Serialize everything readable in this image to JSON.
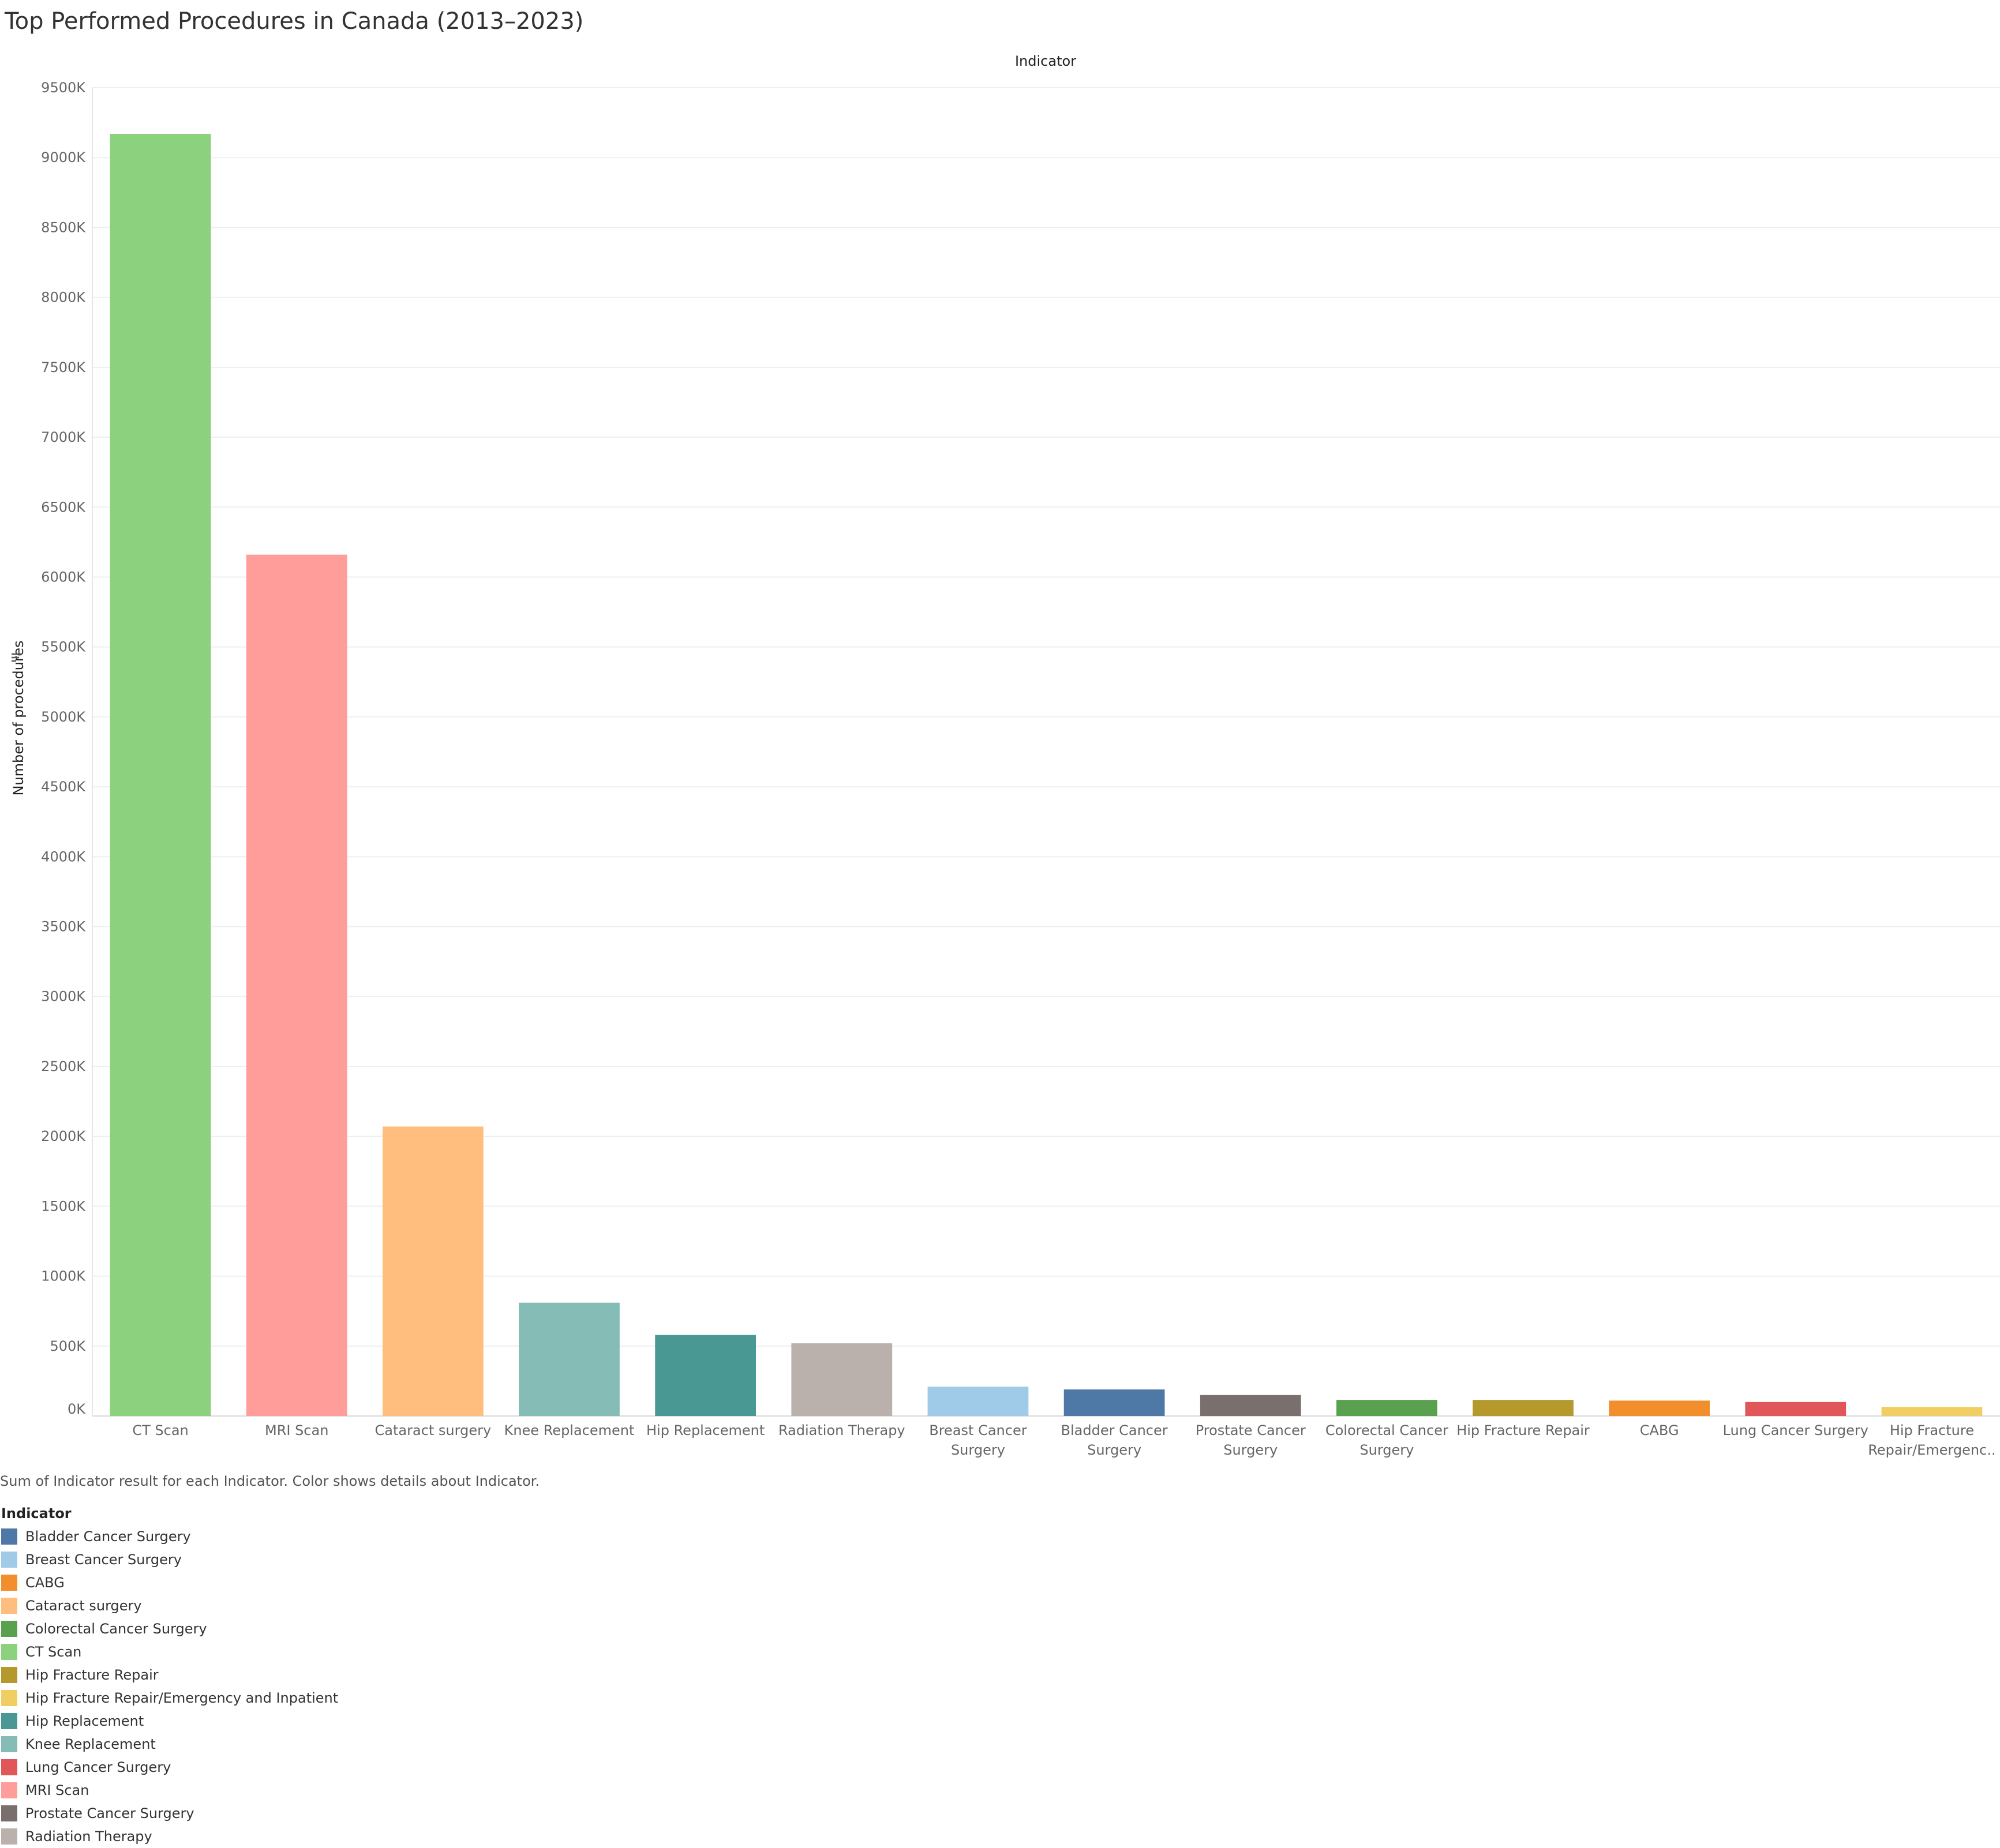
{
  "title": "Top Performed Procedures in Canada (2013–2023)",
  "caption": "Sum of Indicator result for each Indicator.  Color shows details about Indicator.",
  "chart_data": {
    "type": "bar",
    "column_header": "Indicator",
    "ylabel": "Number of procedures",
    "ylim": [
      0,
      9500000
    ],
    "yticks": [
      {
        "value": 0,
        "label": "0K"
      },
      {
        "value": 500000,
        "label": "500K"
      },
      {
        "value": 1000000,
        "label": "1000K"
      },
      {
        "value": 1500000,
        "label": "1500K"
      },
      {
        "value": 2000000,
        "label": "2000K"
      },
      {
        "value": 2500000,
        "label": "2500K"
      },
      {
        "value": 3000000,
        "label": "3000K"
      },
      {
        "value": 3500000,
        "label": "3500K"
      },
      {
        "value": 4000000,
        "label": "4000K"
      },
      {
        "value": 4500000,
        "label": "4500K"
      },
      {
        "value": 5000000,
        "label": "5000K"
      },
      {
        "value": 5500000,
        "label": "5500K"
      },
      {
        "value": 6000000,
        "label": "6000K"
      },
      {
        "value": 6500000,
        "label": "6500K"
      },
      {
        "value": 7000000,
        "label": "7000K"
      },
      {
        "value": 7500000,
        "label": "7500K"
      },
      {
        "value": 8000000,
        "label": "8000K"
      },
      {
        "value": 8500000,
        "label": "8500K"
      },
      {
        "value": 9000000,
        "label": "9000K"
      },
      {
        "value": 9500000,
        "label": "9500K"
      }
    ],
    "grid": true,
    "bars": [
      {
        "category": "CT Scan",
        "label_lines": [
          "CT Scan"
        ],
        "value": 9170000,
        "color": "#8cd17d"
      },
      {
        "category": "MRI Scan",
        "label_lines": [
          "MRI Scan"
        ],
        "value": 6160000,
        "color": "#ff9d9a"
      },
      {
        "category": "Cataract surgery",
        "label_lines": [
          "Cataract surgery"
        ],
        "value": 2070000,
        "color": "#ffbe7d"
      },
      {
        "category": "Knee Replacement",
        "label_lines": [
          "Knee Replacement"
        ],
        "value": 810000,
        "color": "#86bcb6"
      },
      {
        "category": "Hip Replacement",
        "label_lines": [
          "Hip Replacement"
        ],
        "value": 580000,
        "color": "#499894"
      },
      {
        "category": "Radiation Therapy",
        "label_lines": [
          "Radiation Therapy"
        ],
        "value": 520000,
        "color": "#bab0ac"
      },
      {
        "category": "Breast Cancer Surgery",
        "label_lines": [
          "Breast Cancer",
          "Surgery"
        ],
        "value": 210000,
        "color": "#a0cbe8"
      },
      {
        "category": "Bladder Cancer Surgery",
        "label_lines": [
          "Bladder Cancer",
          "Surgery"
        ],
        "value": 190000,
        "color": "#4e79a7"
      },
      {
        "category": "Prostate Cancer Surgery",
        "label_lines": [
          "Prostate Cancer",
          "Surgery"
        ],
        "value": 150000,
        "color": "#79706e"
      },
      {
        "category": "Colorectal Cancer Surgery",
        "label_lines": [
          "Colorectal Cancer",
          "Surgery"
        ],
        "value": 115000,
        "color": "#59a14f"
      },
      {
        "category": "Hip Fracture Repair",
        "label_lines": [
          "Hip Fracture Repair"
        ],
        "value": 115000,
        "color": "#b6992d"
      },
      {
        "category": "CABG",
        "label_lines": [
          "CABG"
        ],
        "value": 110000,
        "color": "#f28e2b"
      },
      {
        "category": "Lung Cancer Surgery",
        "label_lines": [
          "Lung Cancer Surgery"
        ],
        "value": 100000,
        "color": "#e15759"
      },
      {
        "category": "Hip Fracture Repair/Emergency and Inpatient",
        "label_lines": [
          "Hip Fracture",
          "Repair/Emergenc.."
        ],
        "value": 65000,
        "color": "#f1ce63"
      }
    ],
    "legend": {
      "title": "Indicator",
      "placement": "bottom-left",
      "items": [
        {
          "label": "Bladder Cancer Surgery",
          "color": "#4e79a7"
        },
        {
          "label": "Breast Cancer Surgery",
          "color": "#a0cbe8"
        },
        {
          "label": "CABG",
          "color": "#f28e2b"
        },
        {
          "label": "Cataract surgery",
          "color": "#ffbe7d"
        },
        {
          "label": "Colorectal Cancer Surgery",
          "color": "#59a14f"
        },
        {
          "label": "CT Scan",
          "color": "#8cd17d"
        },
        {
          "label": "Hip Fracture Repair",
          "color": "#b6992d"
        },
        {
          "label": "Hip Fracture Repair/Emergency and Inpatient",
          "color": "#f1ce63"
        },
        {
          "label": "Hip Replacement",
          "color": "#499894"
        },
        {
          "label": "Knee Replacement",
          "color": "#86bcb6"
        },
        {
          "label": "Lung Cancer Surgery",
          "color": "#e15759"
        },
        {
          "label": "MRI Scan",
          "color": "#ff9d9a"
        },
        {
          "label": "Prostate Cancer Surgery",
          "color": "#79706e"
        },
        {
          "label": "Radiation Therapy",
          "color": "#bab0ac"
        }
      ]
    }
  }
}
